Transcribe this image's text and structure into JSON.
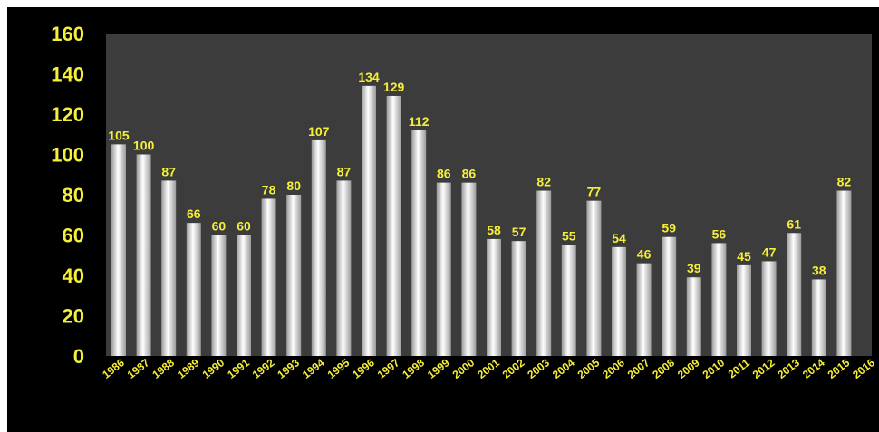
{
  "colors": {
    "background": "#000000",
    "plot_area": "#3c3c3c",
    "label_text": "#f5ef3a",
    "bar_light": "#ffffff",
    "bar_dark": "#9a9a9a"
  },
  "chart_data": {
    "type": "bar",
    "title": "",
    "xlabel": "",
    "ylabel": "",
    "ylim": [
      0,
      160
    ],
    "y_ticks": [
      "0",
      "20",
      "40",
      "60",
      "80",
      "100",
      "120",
      "140",
      "160"
    ],
    "categories": [
      "1986",
      "1987",
      "1988",
      "1989",
      "1990",
      "1991",
      "1992",
      "1993",
      "1994",
      "1995",
      "1996",
      "1997",
      "1998",
      "1999",
      "2000",
      "2001",
      "2002",
      "2003",
      "2004",
      "2005",
      "2006",
      "2007",
      "2008",
      "2009",
      "2010",
      "2011",
      "2012",
      "2013",
      "2014",
      "2015",
      "2016"
    ],
    "values": [
      105,
      100,
      87,
      66,
      60,
      60,
      78,
      80,
      107,
      87,
      134,
      129,
      112,
      86,
      86,
      58,
      57,
      82,
      55,
      77,
      54,
      46,
      59,
      39,
      56,
      45,
      47,
      61,
      38,
      82,
      null
    ],
    "grid": false,
    "legend": "none"
  }
}
